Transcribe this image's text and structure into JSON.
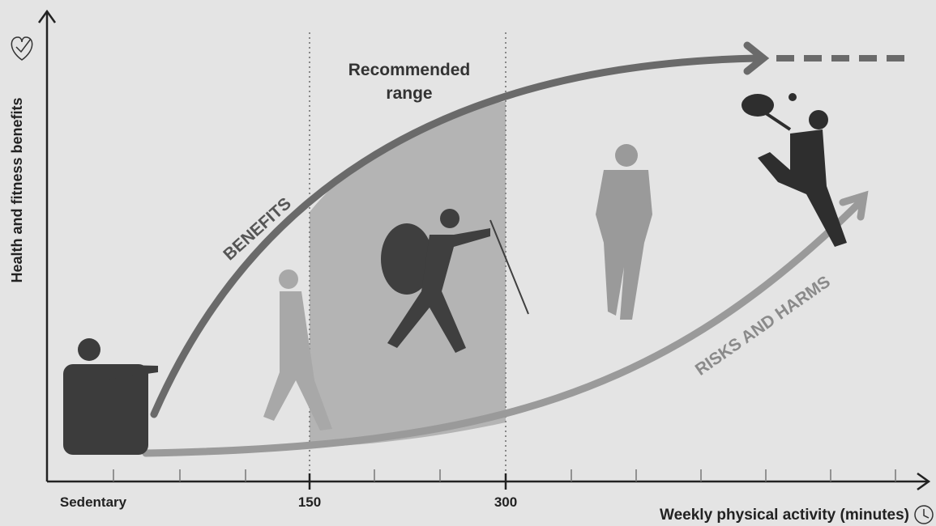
{
  "diagram": {
    "y_axis_label": "Health and fitness benefits",
    "x_axis_label": "Weekly physical activity (minutes)",
    "x_labels": [
      "Sedentary",
      "150",
      "300"
    ],
    "recommended_range": [
      "Recommended",
      "range"
    ],
    "benefits_label": "BENEFITS",
    "risks_label": "RISKS AND HARMS"
  }
}
